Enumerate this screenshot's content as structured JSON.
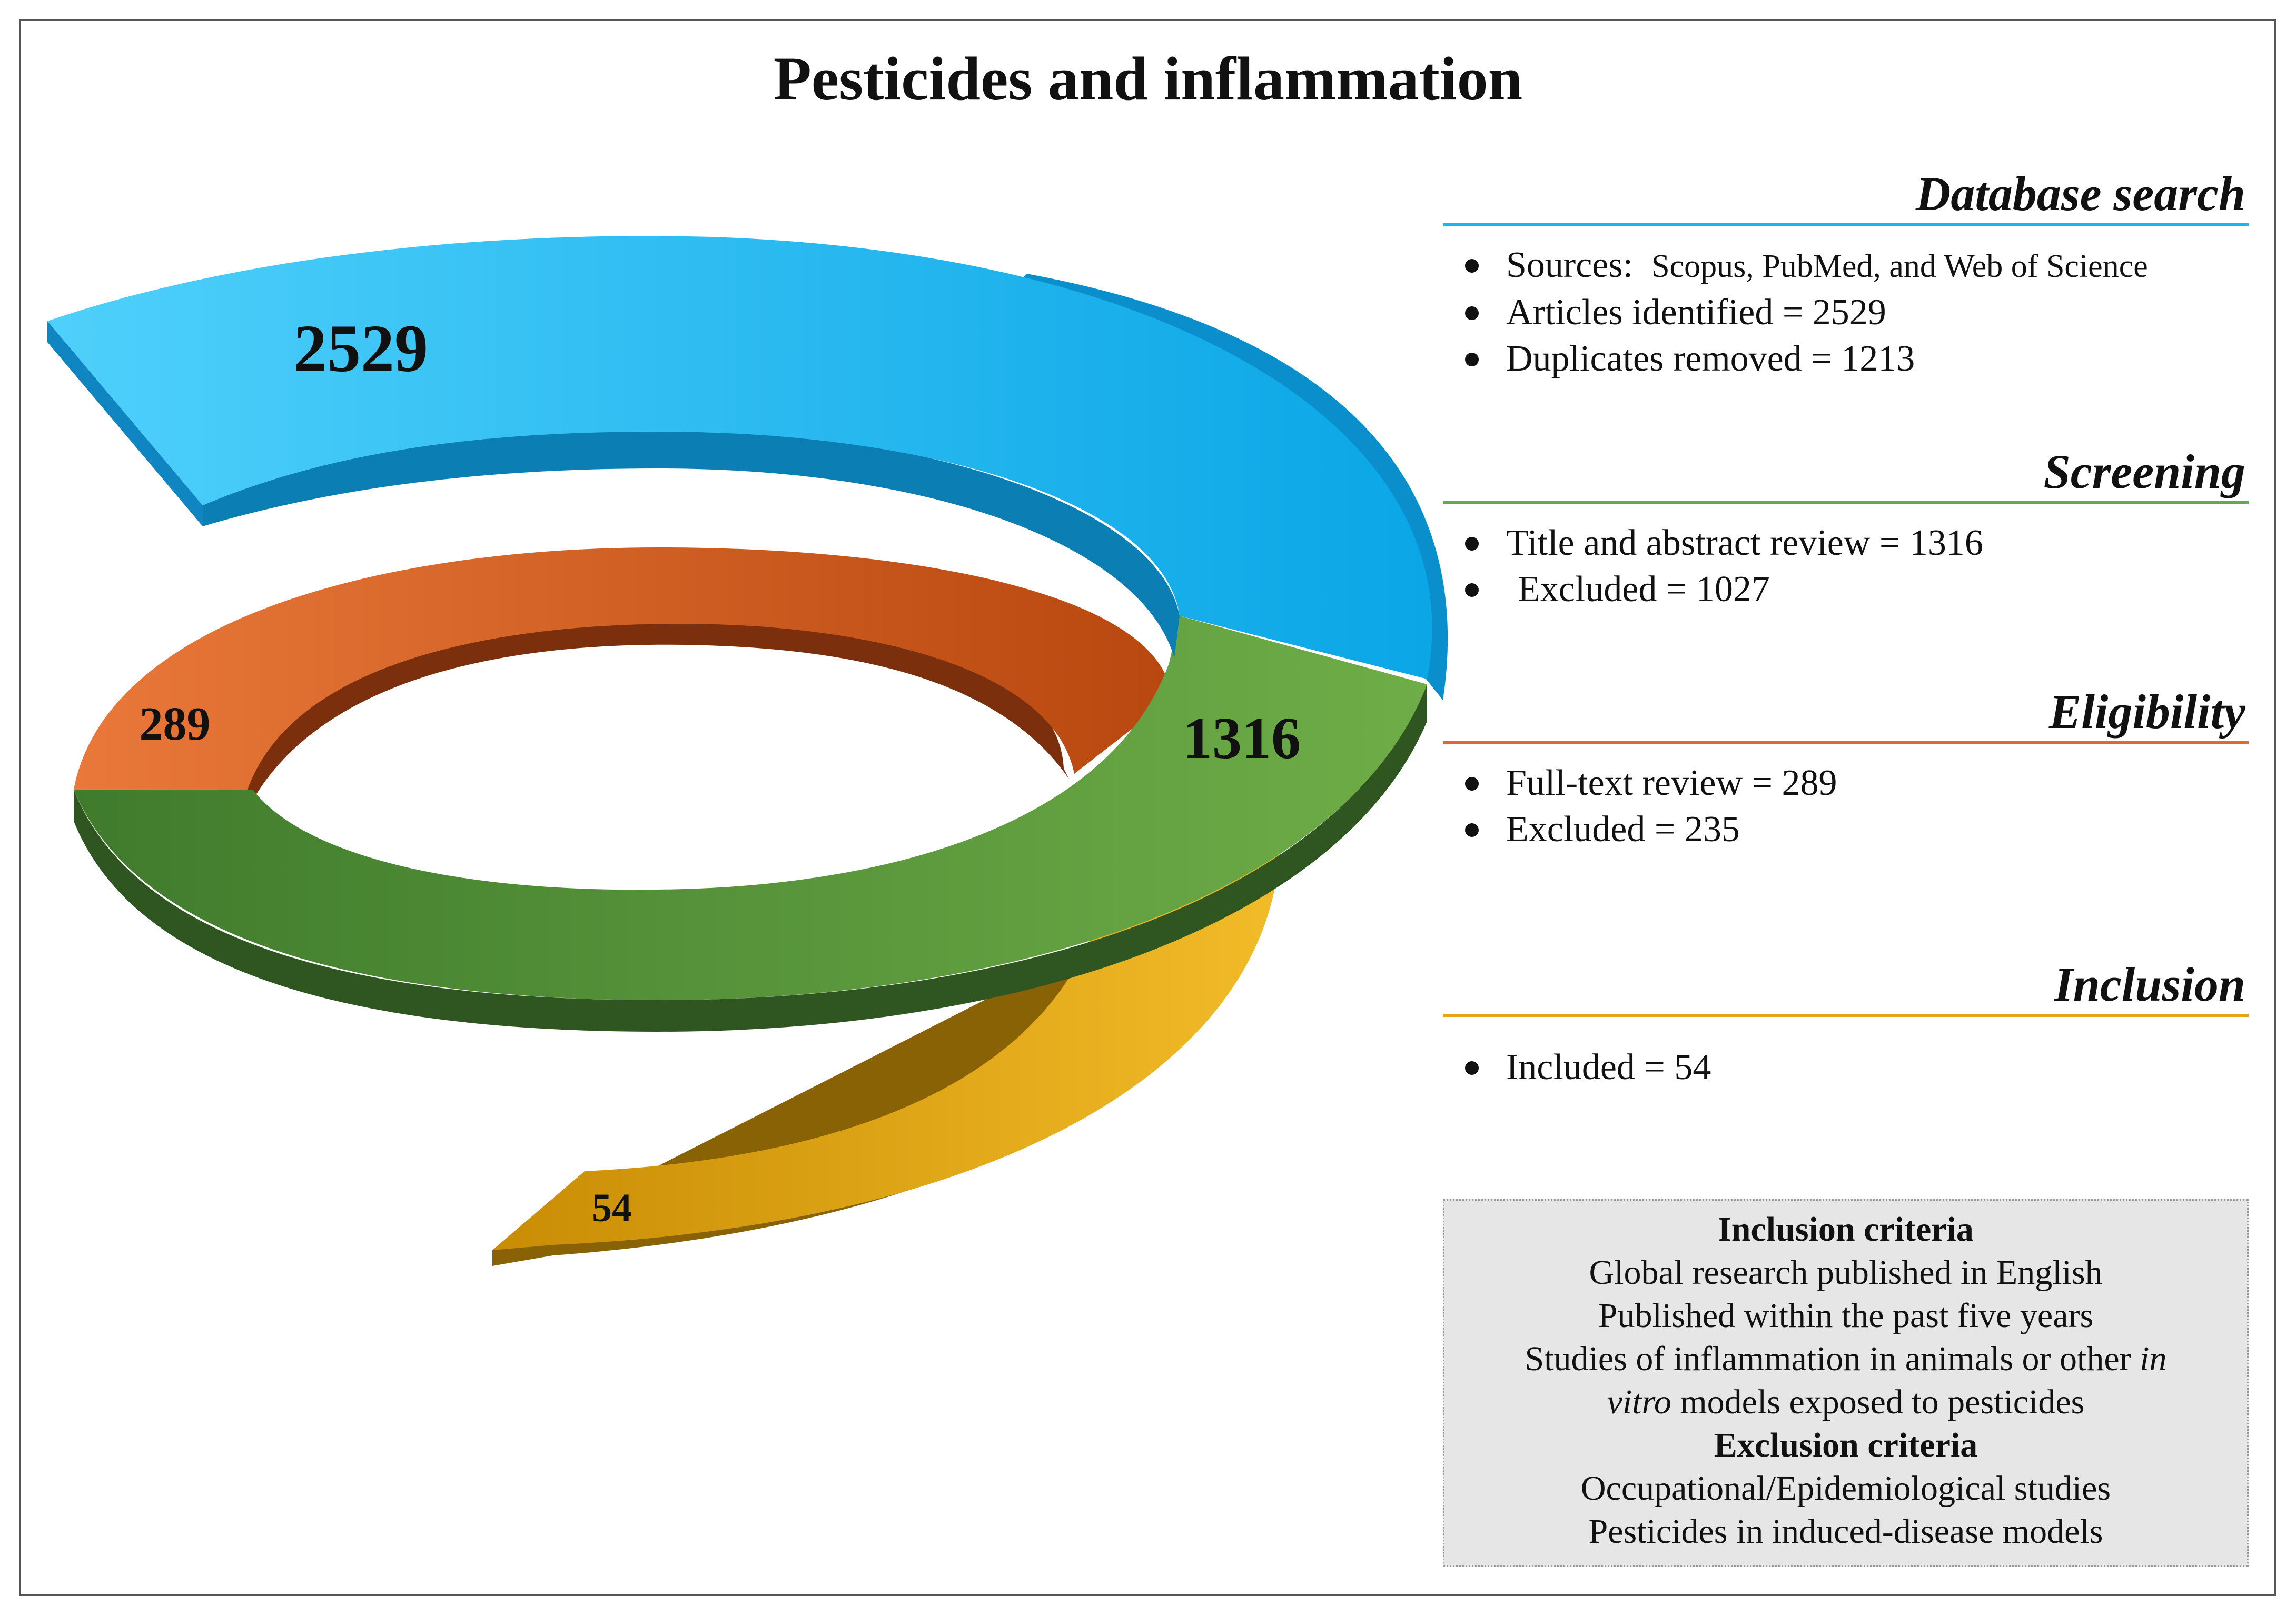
{
  "title": "Pesticides and inflammation",
  "colors": {
    "database": "#1ab6ef",
    "screening": "#6aa84f",
    "eligibility": "#e06a2e",
    "inclusion": "#e8a21a"
  },
  "spiral": {
    "database_count": "2529",
    "screening_count": "1316",
    "eligibility_count": "289",
    "inclusion_count": "54"
  },
  "stages": {
    "database": {
      "heading": "Database search",
      "sources_label": "Sources:",
      "sources_value": "Scopus, PubMed, and Web of Science",
      "items": [
        "Articles identified = 2529",
        "Duplicates removed = 1213"
      ]
    },
    "screening": {
      "heading": "Screening",
      "items": [
        "Title and abstract review = 1316",
        "Excluded = 1027"
      ]
    },
    "eligibility": {
      "heading": "Eligibility",
      "items": [
        "Full-text review = 289",
        "Excluded = 235"
      ]
    },
    "inclusion": {
      "heading": "Inclusion",
      "items": [
        "Included = 54"
      ]
    }
  },
  "criteria": {
    "inclusion_heading": "Inclusion criteria",
    "inclusion_1": "Global research published in English",
    "inclusion_2": "Published within the past five years",
    "inclusion_3a": "Studies of inflammation in animals or other ",
    "inclusion_3b": "in",
    "inclusion_3c": "vitro",
    "inclusion_3d": " models exposed to pesticides",
    "exclusion_heading": "Exclusion criteria",
    "exclusion_1": "Occupational/Epidemiological studies",
    "exclusion_2": "Pesticides in induced-disease models"
  }
}
